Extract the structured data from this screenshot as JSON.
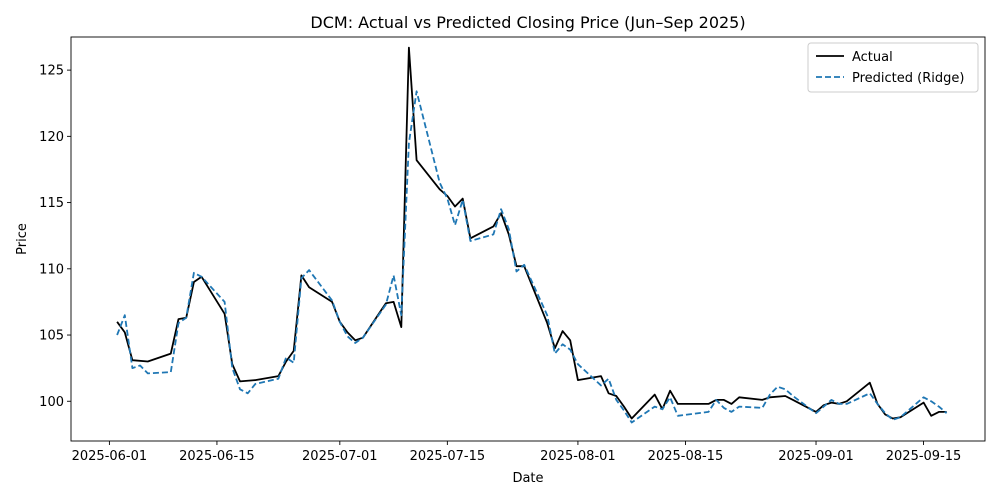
{
  "chart_data": {
    "type": "line",
    "title": "DCM: Actual vs Predicted Closing Price (Jun–Sep 2025)",
    "xlabel": "Date",
    "ylabel": "Price",
    "xlim": [
      "2025-05-27",
      "2025-09-23"
    ],
    "ylim": [
      97.0,
      127.5
    ],
    "x_ticks": [
      "2025-06-01",
      "2025-06-15",
      "2025-07-01",
      "2025-07-15",
      "2025-08-01",
      "2025-08-15",
      "2025-09-01",
      "2025-09-15"
    ],
    "y_ticks": [
      100,
      105,
      110,
      115,
      120,
      125
    ],
    "grid": false,
    "legend_position": "top-right",
    "series": [
      {
        "name": "Actual",
        "color": "#000000",
        "style": "solid",
        "points": [
          [
            "2025-06-02",
            106.0
          ],
          [
            "2025-06-03",
            105.2
          ],
          [
            "2025-06-04",
            103.1
          ],
          [
            "2025-06-06",
            103.0
          ],
          [
            "2025-06-09",
            103.6
          ],
          [
            "2025-06-10",
            106.2
          ],
          [
            "2025-06-11",
            106.3
          ],
          [
            "2025-06-12",
            109.0
          ],
          [
            "2025-06-13",
            109.4
          ],
          [
            "2025-06-16",
            106.6
          ],
          [
            "2025-06-17",
            102.8
          ],
          [
            "2025-06-18",
            101.5
          ],
          [
            "2025-06-20",
            101.6
          ],
          [
            "2025-06-23",
            101.9
          ],
          [
            "2025-06-24",
            103.0
          ],
          [
            "2025-06-25",
            103.8
          ],
          [
            "2025-06-26",
            109.5
          ],
          [
            "2025-06-27",
            108.6
          ],
          [
            "2025-06-30",
            107.5
          ],
          [
            "2025-07-01",
            106.0
          ],
          [
            "2025-07-02",
            105.2
          ],
          [
            "2025-07-03",
            104.6
          ],
          [
            "2025-07-04",
            104.8
          ],
          [
            "2025-07-07",
            107.4
          ],
          [
            "2025-07-08",
            107.5
          ],
          [
            "2025-07-09",
            105.6
          ],
          [
            "2025-07-10",
            126.7
          ],
          [
            "2025-07-11",
            118.2
          ],
          [
            "2025-07-14",
            116.0
          ],
          [
            "2025-07-15",
            115.5
          ],
          [
            "2025-07-16",
            114.7
          ],
          [
            "2025-07-17",
            115.3
          ],
          [
            "2025-07-18",
            112.3
          ],
          [
            "2025-07-21",
            113.2
          ],
          [
            "2025-07-22",
            114.2
          ],
          [
            "2025-07-23",
            112.6
          ],
          [
            "2025-07-24",
            110.2
          ],
          [
            "2025-07-25",
            110.2
          ],
          [
            "2025-07-28",
            105.9
          ],
          [
            "2025-07-29",
            104.0
          ],
          [
            "2025-07-30",
            105.3
          ],
          [
            "2025-07-31",
            104.6
          ],
          [
            "2025-08-01",
            101.6
          ],
          [
            "2025-08-04",
            101.9
          ],
          [
            "2025-08-05",
            100.6
          ],
          [
            "2025-08-06",
            100.4
          ],
          [
            "2025-08-07",
            99.6
          ],
          [
            "2025-08-08",
            98.7
          ],
          [
            "2025-08-11",
            100.5
          ],
          [
            "2025-08-12",
            99.4
          ],
          [
            "2025-08-13",
            100.8
          ],
          [
            "2025-08-14",
            99.8
          ],
          [
            "2025-08-18",
            99.8
          ],
          [
            "2025-08-19",
            100.1
          ],
          [
            "2025-08-20",
            100.1
          ],
          [
            "2025-08-21",
            99.8
          ],
          [
            "2025-08-22",
            100.3
          ],
          [
            "2025-08-25",
            100.1
          ],
          [
            "2025-08-26",
            100.3
          ],
          [
            "2025-08-28",
            100.4
          ],
          [
            "2025-08-29",
            100.1
          ],
          [
            "2025-09-01",
            99.2
          ],
          [
            "2025-09-02",
            99.7
          ],
          [
            "2025-09-03",
            99.9
          ],
          [
            "2025-09-04",
            99.8
          ],
          [
            "2025-09-05",
            100.0
          ],
          [
            "2025-09-08",
            101.4
          ],
          [
            "2025-09-09",
            99.8
          ],
          [
            "2025-09-10",
            99.0
          ],
          [
            "2025-09-11",
            98.7
          ],
          [
            "2025-09-12",
            98.8
          ],
          [
            "2025-09-15",
            99.9
          ],
          [
            "2025-09-16",
            98.9
          ],
          [
            "2025-09-17",
            99.2
          ],
          [
            "2025-09-18",
            99.2
          ]
        ]
      },
      {
        "name": "Predicted (Ridge)",
        "color": "#1f77b4",
        "style": "dashed",
        "points": [
          [
            "2025-06-02",
            105.0
          ],
          [
            "2025-06-03",
            106.5
          ],
          [
            "2025-06-04",
            102.5
          ],
          [
            "2025-06-05",
            102.7
          ],
          [
            "2025-06-06",
            102.1
          ],
          [
            "2025-06-09",
            102.2
          ],
          [
            "2025-06-10",
            105.9
          ],
          [
            "2025-06-11",
            106.3
          ],
          [
            "2025-06-12",
            109.7
          ],
          [
            "2025-06-13",
            109.4
          ],
          [
            "2025-06-16",
            107.5
          ],
          [
            "2025-06-17",
            102.5
          ],
          [
            "2025-06-18",
            100.9
          ],
          [
            "2025-06-19",
            100.6
          ],
          [
            "2025-06-20",
            101.3
          ],
          [
            "2025-06-23",
            101.7
          ],
          [
            "2025-06-24",
            103.3
          ],
          [
            "2025-06-25",
            102.9
          ],
          [
            "2025-06-26",
            109.3
          ],
          [
            "2025-06-27",
            109.9
          ],
          [
            "2025-06-30",
            107.6
          ],
          [
            "2025-07-01",
            106.0
          ],
          [
            "2025-07-02",
            104.9
          ],
          [
            "2025-07-03",
            104.4
          ],
          [
            "2025-07-04",
            104.8
          ],
          [
            "2025-07-07",
            107.3
          ],
          [
            "2025-07-08",
            109.5
          ],
          [
            "2025-07-09",
            106.5
          ],
          [
            "2025-07-10",
            119.5
          ],
          [
            "2025-07-11",
            123.4
          ],
          [
            "2025-07-14",
            116.5
          ],
          [
            "2025-07-15",
            115.3
          ],
          [
            "2025-07-16",
            113.3
          ],
          [
            "2025-07-17",
            115.2
          ],
          [
            "2025-07-18",
            112.1
          ],
          [
            "2025-07-21",
            112.6
          ],
          [
            "2025-07-22",
            114.5
          ],
          [
            "2025-07-23",
            113.0
          ],
          [
            "2025-07-24",
            109.8
          ],
          [
            "2025-07-25",
            110.3
          ],
          [
            "2025-07-28",
            106.5
          ],
          [
            "2025-07-29",
            103.6
          ],
          [
            "2025-07-30",
            104.3
          ],
          [
            "2025-07-31",
            103.9
          ],
          [
            "2025-08-01",
            102.8
          ],
          [
            "2025-08-04",
            101.2
          ],
          [
            "2025-08-05",
            101.7
          ],
          [
            "2025-08-06",
            100.1
          ],
          [
            "2025-08-07",
            99.3
          ],
          [
            "2025-08-08",
            98.4
          ],
          [
            "2025-08-11",
            99.6
          ],
          [
            "2025-08-12",
            99.4
          ],
          [
            "2025-08-13",
            100.3
          ],
          [
            "2025-08-14",
            98.9
          ],
          [
            "2025-08-18",
            99.2
          ],
          [
            "2025-08-19",
            100.1
          ],
          [
            "2025-08-20",
            99.5
          ],
          [
            "2025-08-21",
            99.2
          ],
          [
            "2025-08-22",
            99.6
          ],
          [
            "2025-08-25",
            99.5
          ],
          [
            "2025-08-26",
            100.5
          ],
          [
            "2025-08-27",
            101.1
          ],
          [
            "2025-08-28",
            100.9
          ],
          [
            "2025-08-29",
            100.4
          ],
          [
            "2025-09-01",
            99.1
          ],
          [
            "2025-09-02",
            99.6
          ],
          [
            "2025-09-03",
            100.1
          ],
          [
            "2025-09-04",
            99.8
          ],
          [
            "2025-09-05",
            99.8
          ],
          [
            "2025-09-08",
            100.6
          ],
          [
            "2025-09-09",
            99.8
          ],
          [
            "2025-09-10",
            99.1
          ],
          [
            "2025-09-11",
            98.6
          ],
          [
            "2025-09-12",
            98.8
          ],
          [
            "2025-09-15",
            100.3
          ],
          [
            "2025-09-16",
            100.0
          ],
          [
            "2025-09-17",
            99.6
          ],
          [
            "2025-09-18",
            99.1
          ]
        ]
      }
    ]
  }
}
